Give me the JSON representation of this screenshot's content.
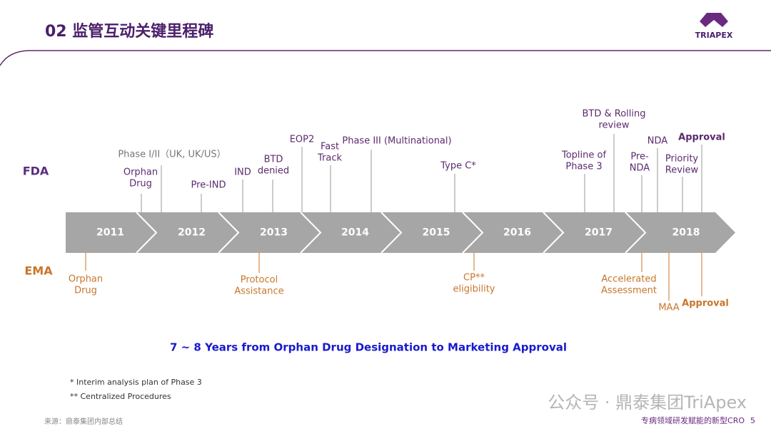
{
  "header": {
    "title": "02 监管互动关键里程碑",
    "logo": "TRIAPEX"
  },
  "timeline": {
    "fda_label": "FDA",
    "ema_label": "EMA",
    "years": [
      "2011",
      "2012",
      "2013",
      "2014",
      "2015",
      "2016",
      "2017",
      "2018"
    ],
    "fda_events": [
      [
        "Phase I/II（UK, UK/US）"
      ],
      [
        "Orphan",
        "Drug"
      ],
      [
        "Pre-IND"
      ],
      [
        "IND"
      ],
      [
        "BTD",
        "denied"
      ],
      [
        "EOP2"
      ],
      [
        "Fast",
        "Track"
      ],
      [
        "Phase III (Multinational)"
      ],
      [
        "Type C*"
      ],
      [
        "Topline of",
        "Phase 3"
      ],
      [
        "BTD & Rolling",
        "review"
      ],
      [
        "Pre-",
        "NDA"
      ],
      [
        "NDA"
      ],
      [
        "Priority",
        "Review"
      ],
      [
        "Approval"
      ]
    ],
    "ema_events": [
      [
        "Orphan",
        "Drug"
      ],
      [
        "Protocol",
        "Assistance"
      ],
      [
        "CP**",
        "eligibility"
      ],
      [
        "Accelerated",
        "Assessment"
      ],
      [
        "MAA"
      ],
      [
        "Approval"
      ]
    ]
  },
  "headline": "7 ~ 8 Years from Orphan Drug Designation to Marketing Approval",
  "footnotes": [
    "*   Interim analysis plan of Phase 3",
    "** Centralized Procedures"
  ],
  "source": "来源：鼎泰集团内部总结",
  "footer": {
    "tagline": "专病领域研发赋能的新型CRO",
    "page": "5"
  },
  "watermark": "公众号 · 鼎泰集团TriApex"
}
